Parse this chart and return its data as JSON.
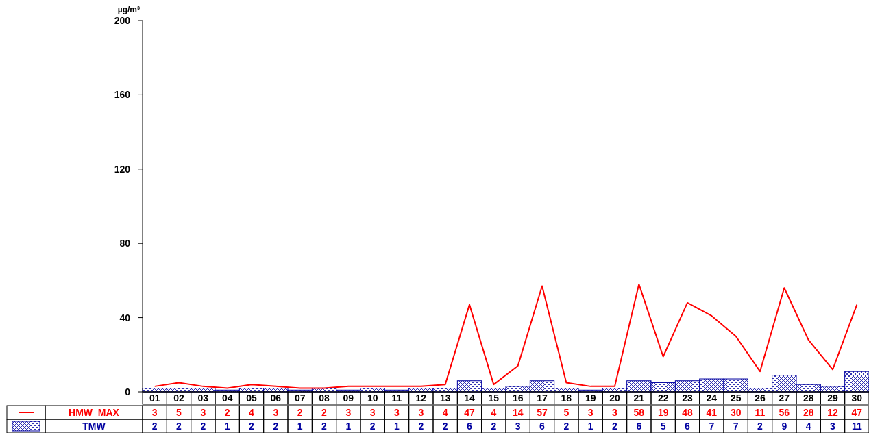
{
  "chart_data": {
    "type": "bar",
    "ylabel": "µg/m³",
    "categories": [
      "01",
      "02",
      "03",
      "04",
      "05",
      "06",
      "07",
      "08",
      "09",
      "10",
      "11",
      "12",
      "13",
      "14",
      "15",
      "16",
      "17",
      "18",
      "19",
      "20",
      "21",
      "22",
      "23",
      "24",
      "25",
      "26",
      "27",
      "28",
      "29",
      "30"
    ],
    "series": [
      {
        "name": "HMW_MAX",
        "type": "line",
        "color": "#ff0000",
        "values": [
          3,
          5,
          3,
          2,
          4,
          3,
          2,
          2,
          3,
          3,
          3,
          3,
          4,
          47,
          4,
          14,
          57,
          5,
          3,
          3,
          58,
          19,
          48,
          41,
          30,
          11,
          56,
          28,
          12,
          47
        ]
      },
      {
        "name": "TMW",
        "color": "#0000a0",
        "values": [
          2,
          2,
          2,
          1,
          2,
          2,
          1,
          2,
          1,
          2,
          1,
          2,
          2,
          6,
          2,
          3,
          6,
          2,
          1,
          2,
          6,
          5,
          6,
          7,
          7,
          2,
          9,
          4,
          3,
          11
        ]
      }
    ],
    "ylim": [
      0,
      200
    ],
    "yticks": [
      0,
      40,
      80,
      120,
      160,
      200
    ],
    "grid": false,
    "legend": "bottom left",
    "data_labels": true,
    "marker": "none"
  }
}
